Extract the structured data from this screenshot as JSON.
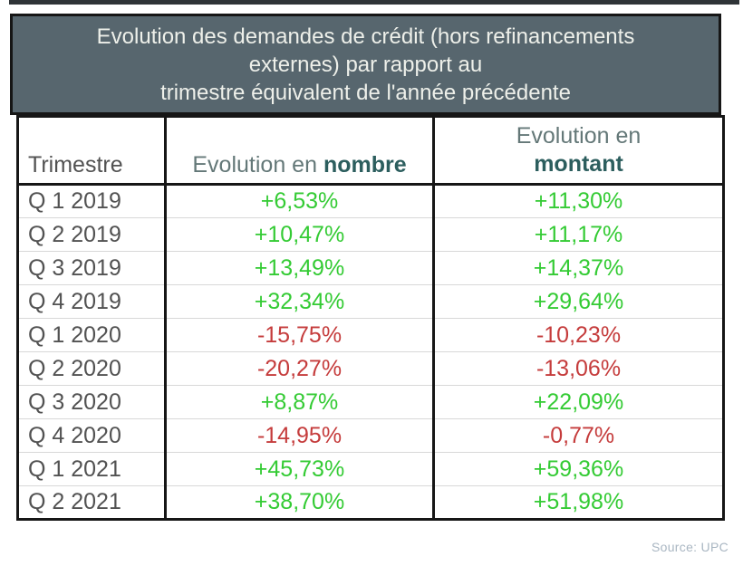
{
  "table": {
    "title_lines": [
      "Evolution des demandes de crédit (hors refinancements",
      "externes) par rapport au",
      "trimestre équivalent de l'année précédente"
    ],
    "headers": {
      "trimestre": "Trimestre",
      "nombre_prefix": "Evolution en",
      "nombre_bold": "nombre",
      "montant_prefix": "Evolution en",
      "montant_bold": "montant"
    }
  },
  "source": {
    "label": "Source: UPC"
  },
  "colors": {
    "title_background": "#57666e",
    "title_text": "#eef0ea",
    "positive": "#34cb34",
    "negative": "#c53c3c",
    "header_accent_teal": "#2c5e5e",
    "quarter_text": "#525252",
    "source_text": "#a9b6c2"
  },
  "chart_data": {
    "type": "table",
    "title": "Evolution des demandes de crédit (hors refinancements externes) par rapport au trimestre équivalent de l'année précédente",
    "columns": [
      "Trimestre",
      "Evolution en nombre",
      "Evolution en montant"
    ],
    "categories": [
      "Q 1 2019",
      "Q 2 2019",
      "Q 3 2019",
      "Q 4 2019",
      "Q 1 2020",
      "Q 2 2020",
      "Q 3 2020",
      "Q 4 2020",
      "Q 1 2021",
      "Q 2 2021"
    ],
    "series": [
      {
        "name": "Evolution en nombre",
        "values": [
          6.53,
          10.47,
          13.49,
          32.34,
          -15.75,
          -20.27,
          8.87,
          -14.95,
          45.73,
          38.7
        ]
      },
      {
        "name": "Evolution en montant",
        "values": [
          11.3,
          11.17,
          14.37,
          29.64,
          -10.23,
          -13.06,
          22.09,
          -0.77,
          59.36,
          51.98
        ]
      }
    ],
    "rows": [
      {
        "trimestre": "Q 1 2019",
        "nombre": "+6,53%",
        "montant": "+11,30%",
        "trend": "up"
      },
      {
        "trimestre": "Q 2 2019",
        "nombre": "+10,47%",
        "montant": "+11,17%",
        "trend": "up"
      },
      {
        "trimestre": "Q 3 2019",
        "nombre": "+13,49%",
        "montant": "+14,37%",
        "trend": "up"
      },
      {
        "trimestre": "Q 4 2019",
        "nombre": "+32,34%",
        "montant": "+29,64%",
        "trend": "up"
      },
      {
        "trimestre": "Q 1 2020",
        "nombre": "-15,75%",
        "montant": "-10,23%",
        "trend": "down"
      },
      {
        "trimestre": "Q 2 2020",
        "nombre": "-20,27%",
        "montant": "-13,06%",
        "trend": "down"
      },
      {
        "trimestre": "Q 3 2020",
        "nombre": "+8,87%",
        "montant": "+22,09%",
        "trend": "up"
      },
      {
        "trimestre": "Q 4 2020",
        "nombre": "-14,95%",
        "montant": "-0,77%",
        "trend": "down"
      },
      {
        "trimestre": "Q 1 2021",
        "nombre": "+45,73%",
        "montant": "+59,36%",
        "trend": "up"
      },
      {
        "trimestre": "Q 2 2021",
        "nombre": "+38,70%",
        "montant": "+51,98%",
        "trend": "up"
      }
    ]
  }
}
